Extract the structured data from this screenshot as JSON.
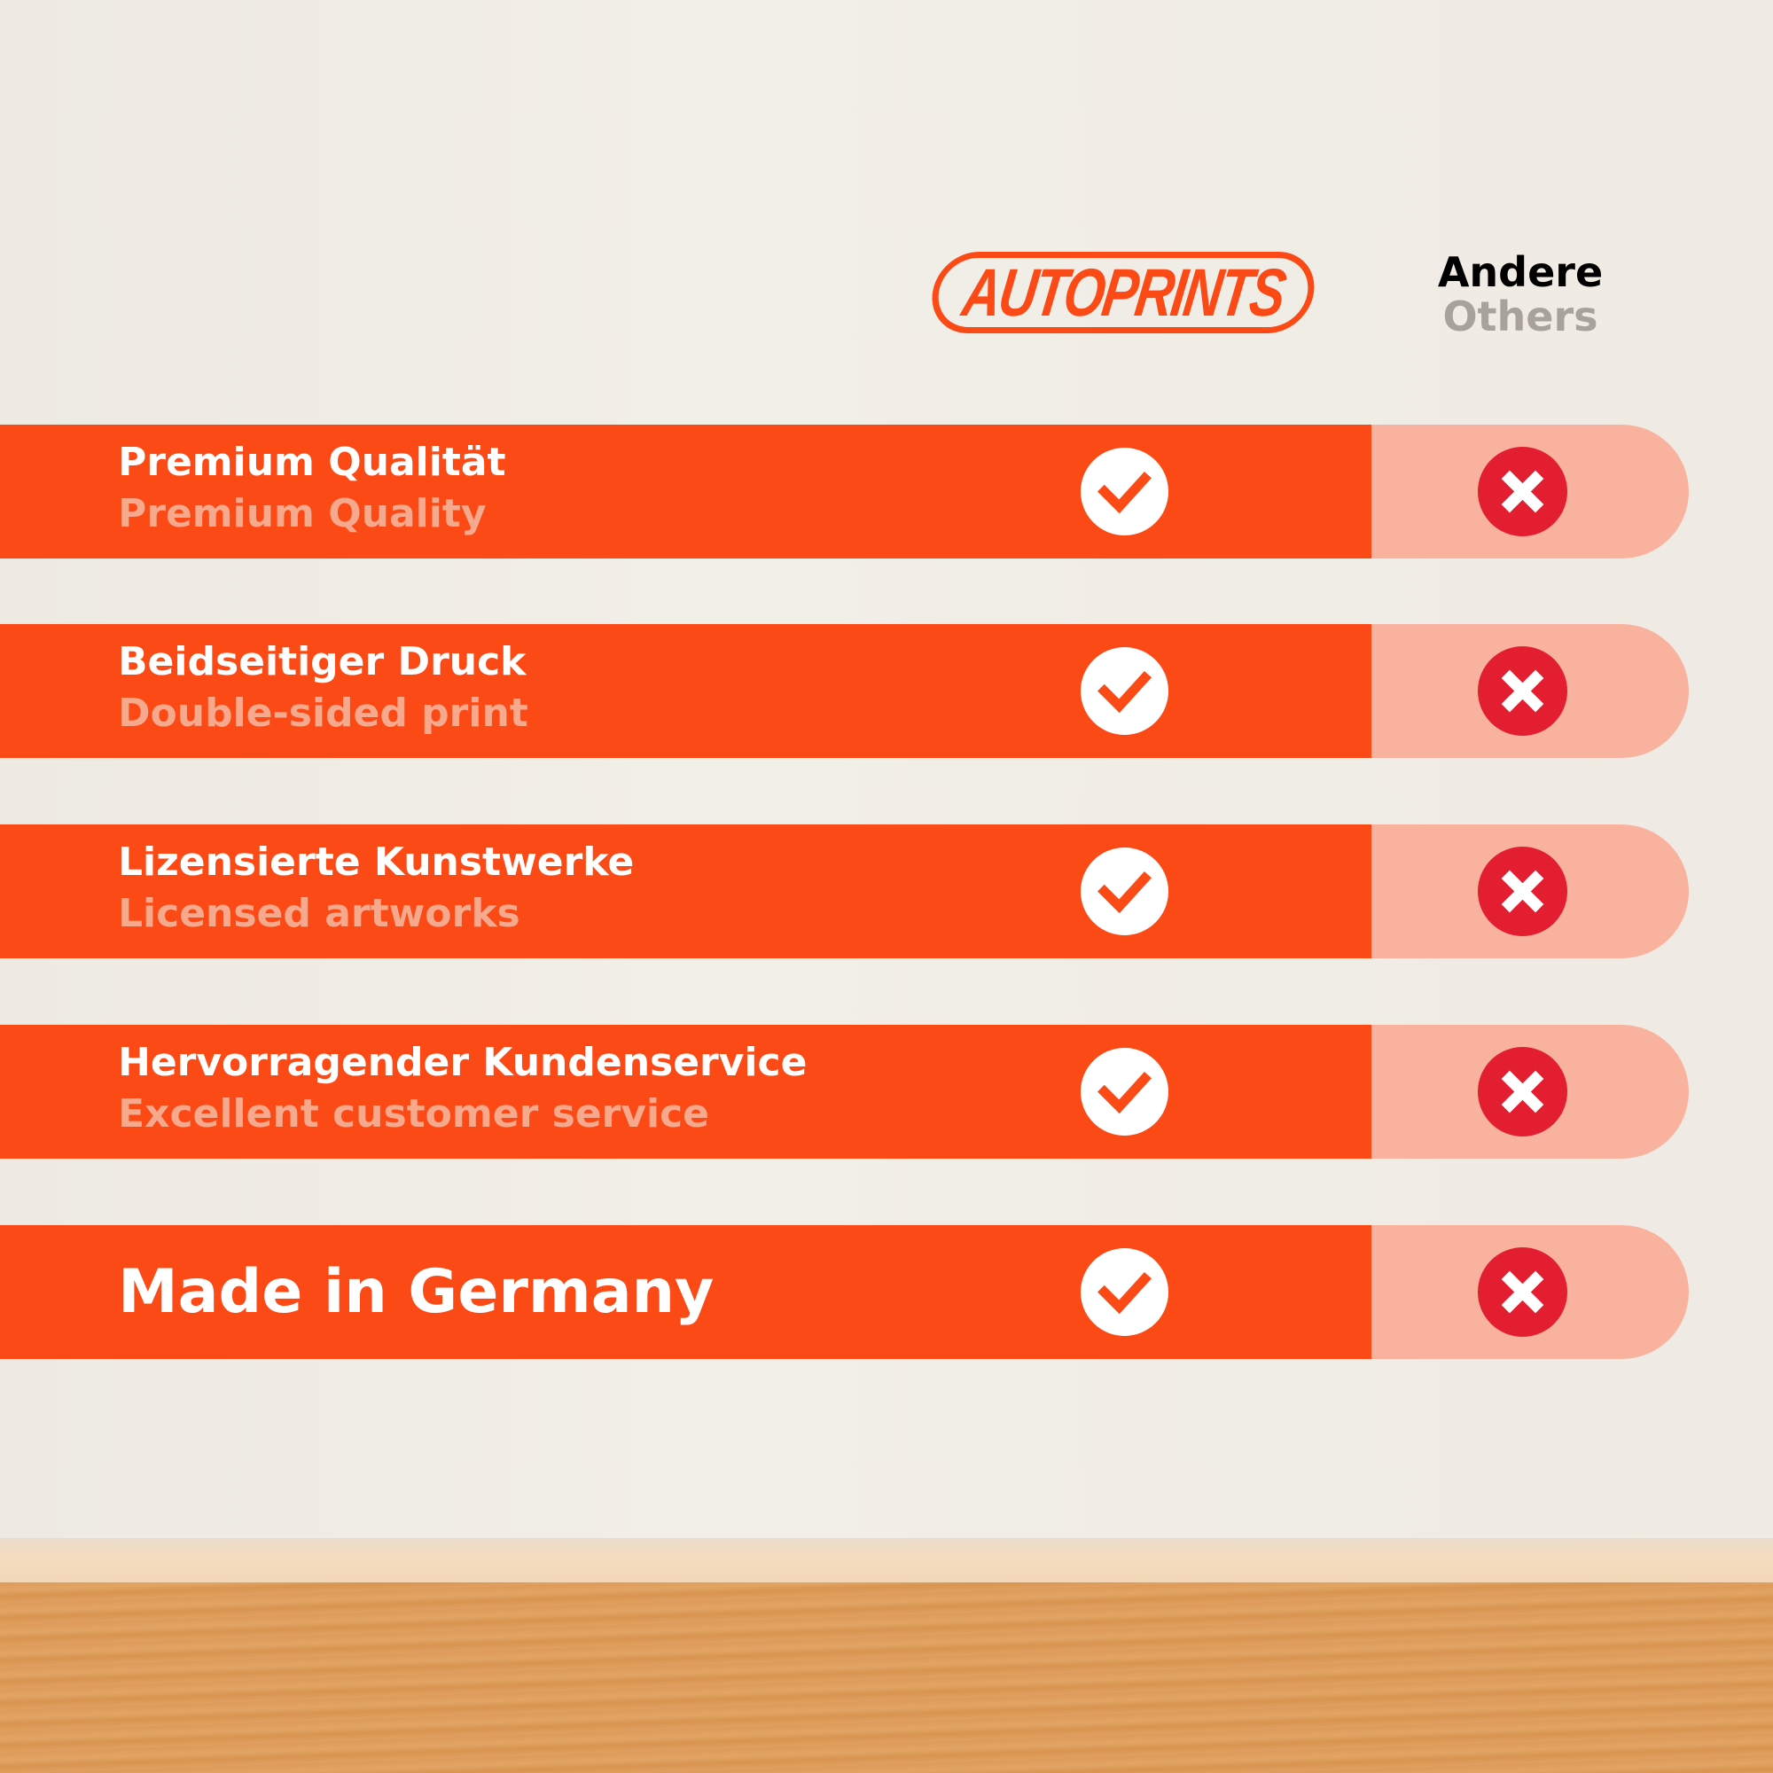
{
  "brand": {
    "logo_text": "AUTOPRINTS",
    "accent": "#fc4a17"
  },
  "header": {
    "others_de": "Andere",
    "others_en": "Others"
  },
  "rows": [
    {
      "de": "Premium Qualität",
      "en": "Premium Quality",
      "autoprints": "check-icon",
      "others": "cross-icon"
    },
    {
      "de": "Beidseitiger Druck",
      "en": "Double-sided print",
      "autoprints": "check-icon",
      "others": "cross-icon"
    },
    {
      "de": "Lizensierte Kunstwerke",
      "en": "Licensed artworks",
      "autoprints": "check-icon",
      "others": "cross-icon"
    },
    {
      "de": "Hervorragender Kundenservice",
      "en": "Excellent customer service",
      "autoprints": "check-icon",
      "others": "cross-icon"
    },
    {
      "de": "Made in Germany",
      "autoprints": "check-icon",
      "others": "cross-icon"
    }
  ],
  "colors": {
    "bar": "#fc4a17",
    "others_bar": "#f9b29e",
    "cross": "#e31e30",
    "subtitle": "#f7a98e"
  }
}
